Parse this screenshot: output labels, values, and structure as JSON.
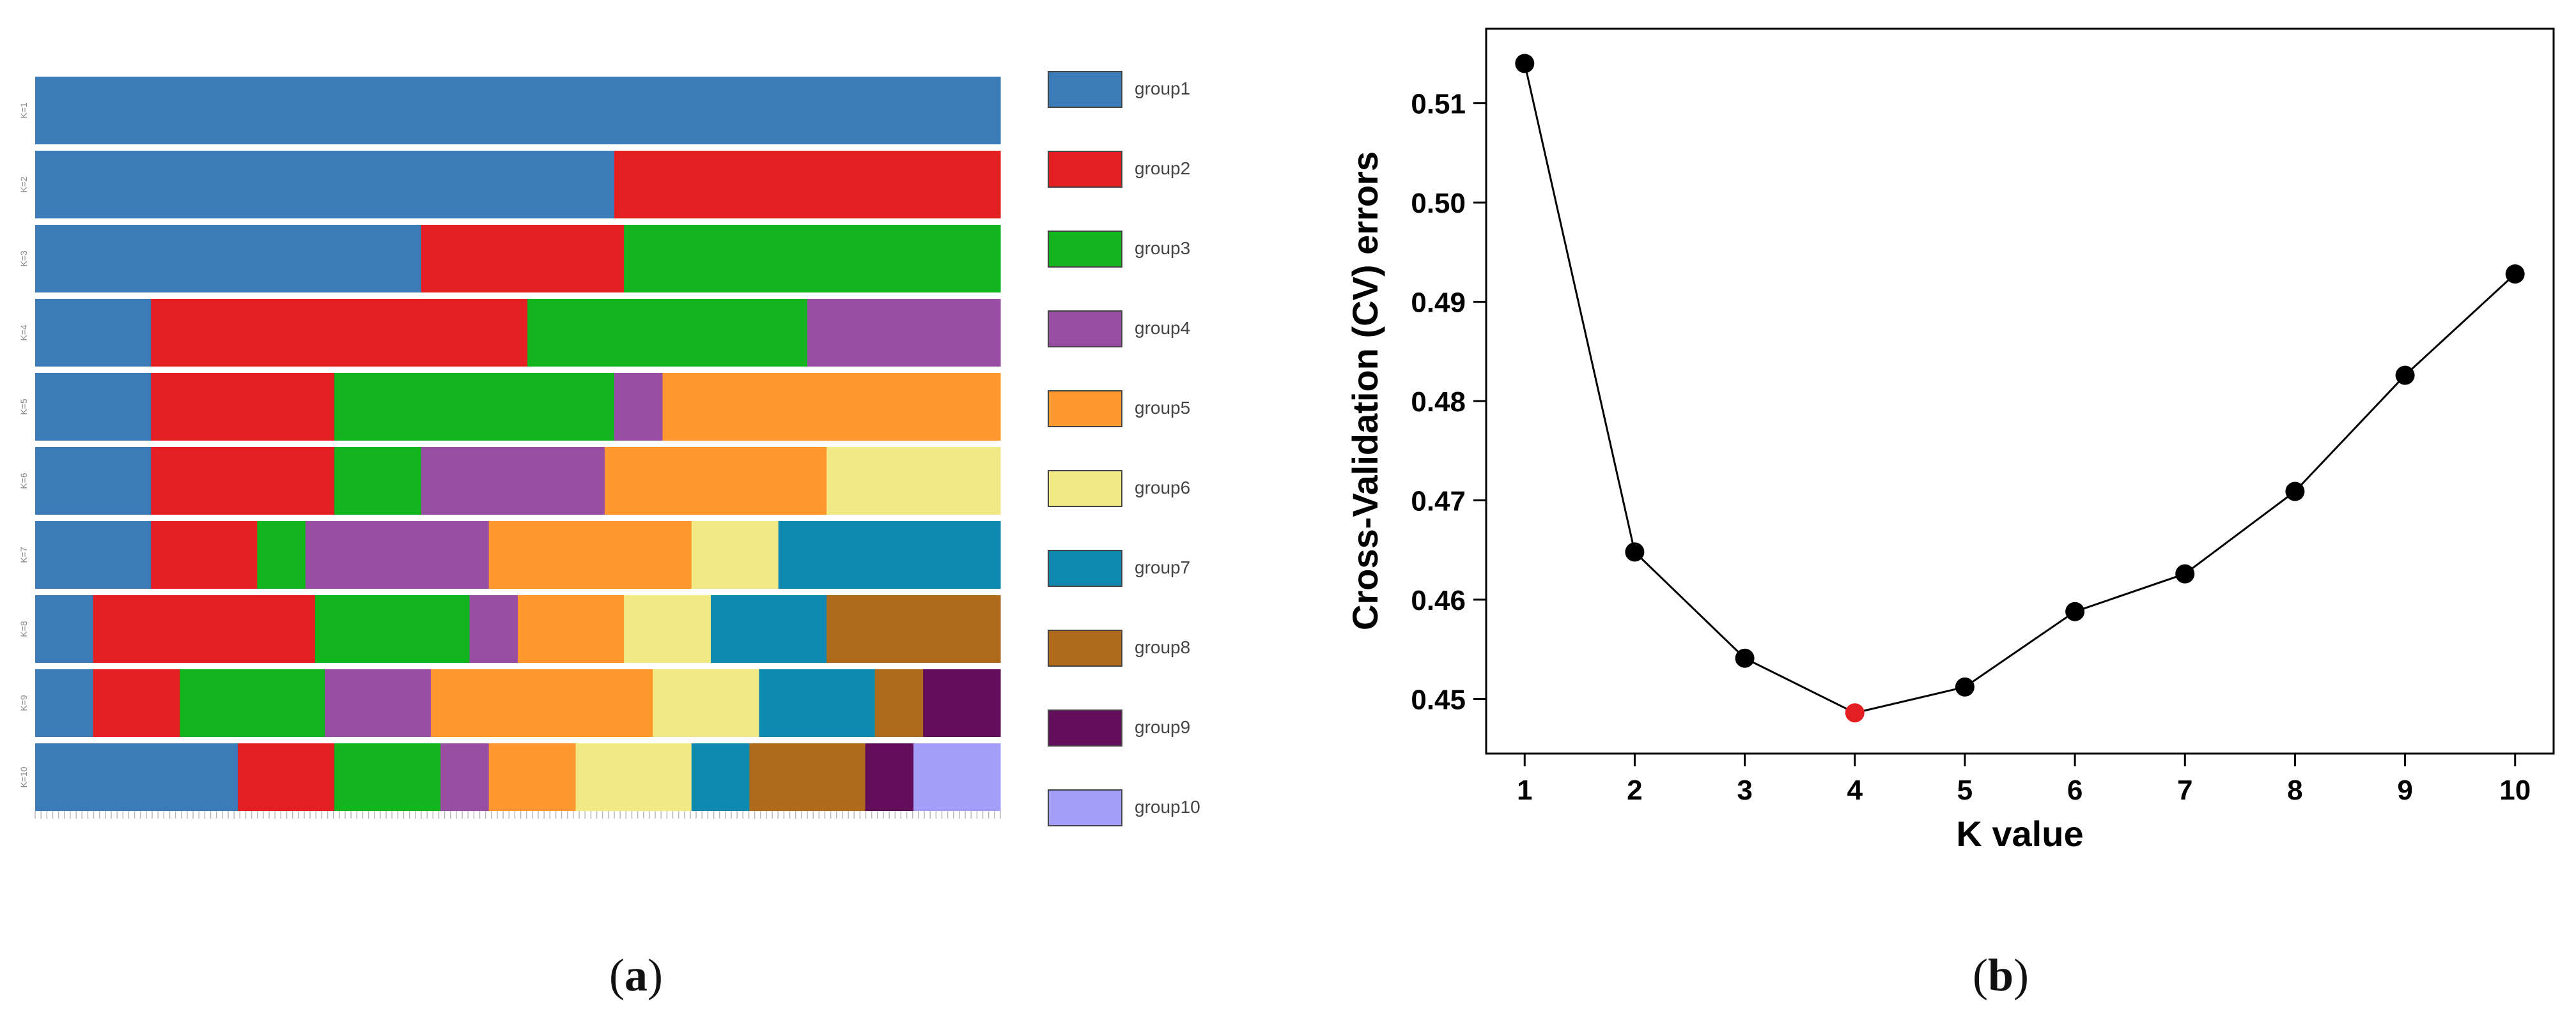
{
  "panel_a": {
    "caption_letter": "a",
    "chart_data": {
      "type": "stacked-bar-admixture",
      "title": "",
      "row_labels": [
        "K=1",
        "K=2",
        "K=3",
        "K=4",
        "K=5",
        "K=6",
        "K=7",
        "K=8",
        "K=9",
        "K=10"
      ],
      "legend": [
        {
          "label": "group1",
          "color": "#3b7bb8"
        },
        {
          "label": "group2",
          "color": "#e41f22"
        },
        {
          "label": "group3",
          "color": "#12b51d"
        },
        {
          "label": "group4",
          "color": "#984ea3"
        },
        {
          "label": "group5",
          "color": "#ff982f"
        },
        {
          "label": "group6",
          "color": "#f0e985"
        },
        {
          "label": "group7",
          "color": "#0f89b0"
        },
        {
          "label": "group8",
          "color": "#b06a1b"
        },
        {
          "label": "group9",
          "color": "#630e5a"
        },
        {
          "label": "group10",
          "color": "#a39ff9"
        }
      ],
      "rows": [
        {
          "k": 1,
          "segments": [
            [
              1,
              1.0
            ]
          ]
        },
        {
          "k": 2,
          "segments": [
            [
              1,
              0.6
            ],
            [
              2,
              0.4
            ]
          ]
        },
        {
          "k": 3,
          "segments": [
            [
              1,
              0.4
            ],
            [
              2,
              0.21
            ],
            [
              3,
              0.39
            ]
          ]
        },
        {
          "k": 4,
          "segments": [
            [
              1,
              0.12
            ],
            [
              2,
              0.39
            ],
            [
              3,
              0.29
            ],
            [
              4,
              0.2
            ]
          ]
        },
        {
          "k": 5,
          "segments": [
            [
              1,
              0.12
            ],
            [
              2,
              0.19
            ],
            [
              3,
              0.29
            ],
            [
              4,
              0.05
            ],
            [
              5,
              0.35
            ]
          ]
        },
        {
          "k": 6,
          "segments": [
            [
              1,
              0.12
            ],
            [
              2,
              0.19
            ],
            [
              3,
              0.09
            ],
            [
              4,
              0.19
            ],
            [
              5,
              0.23
            ],
            [
              6,
              0.18
            ]
          ]
        },
        {
          "k": 7,
          "segments": [
            [
              1,
              0.12
            ],
            [
              2,
              0.11
            ],
            [
              3,
              0.05
            ],
            [
              4,
              0.19
            ],
            [
              5,
              0.21
            ],
            [
              6,
              0.09
            ],
            [
              7,
              0.23
            ]
          ]
        },
        {
          "k": 8,
          "segments": [
            [
              1,
              0.06
            ],
            [
              2,
              0.23
            ],
            [
              3,
              0.16
            ],
            [
              4,
              0.05
            ],
            [
              5,
              0.11
            ],
            [
              6,
              0.09
            ],
            [
              7,
              0.12
            ],
            [
              8,
              0.18
            ]
          ]
        },
        {
          "k": 9,
          "segments": [
            [
              1,
              0.06
            ],
            [
              2,
              0.09
            ],
            [
              3,
              0.15
            ],
            [
              4,
              0.11
            ],
            [
              5,
              0.23
            ],
            [
              6,
              0.11
            ],
            [
              7,
              0.12
            ],
            [
              8,
              0.05
            ],
            [
              9,
              0.08
            ]
          ]
        },
        {
          "k": 10,
          "segments": [
            [
              1,
              0.21
            ],
            [
              2,
              0.1
            ],
            [
              3,
              0.11
            ],
            [
              4,
              0.05
            ],
            [
              5,
              0.09
            ],
            [
              6,
              0.12
            ],
            [
              7,
              0.06
            ],
            [
              8,
              0.12
            ],
            [
              9,
              0.05
            ],
            [
              10,
              0.09
            ]
          ]
        }
      ]
    }
  },
  "panel_b": {
    "caption_letter": "b",
    "chart_data": {
      "type": "line",
      "title": "",
      "xlabel": "K value",
      "ylabel": "Cross-Validation (CV) errors",
      "x": [
        1,
        2,
        3,
        4,
        5,
        6,
        7,
        8,
        9,
        10
      ],
      "series": [
        {
          "name": "CV error",
          "values": [
            0.514,
            0.4648,
            0.4541,
            0.4486,
            0.4512,
            0.4588,
            0.4626,
            0.4709,
            0.4826,
            0.4928
          ]
        }
      ],
      "highlight_index": 3,
      "highlight_color": "#e41f22",
      "point_color": "#000000",
      "ylim": [
        0.4445,
        0.5175
      ],
      "xlim": [
        0.65,
        10.35
      ],
      "yticks": [
        "0.45",
        "0.46",
        "0.47",
        "0.48",
        "0.49",
        "0.50",
        "0.51"
      ],
      "xticks": [
        "1",
        "2",
        "3",
        "4",
        "5",
        "6",
        "7",
        "8",
        "9",
        "10"
      ]
    }
  }
}
